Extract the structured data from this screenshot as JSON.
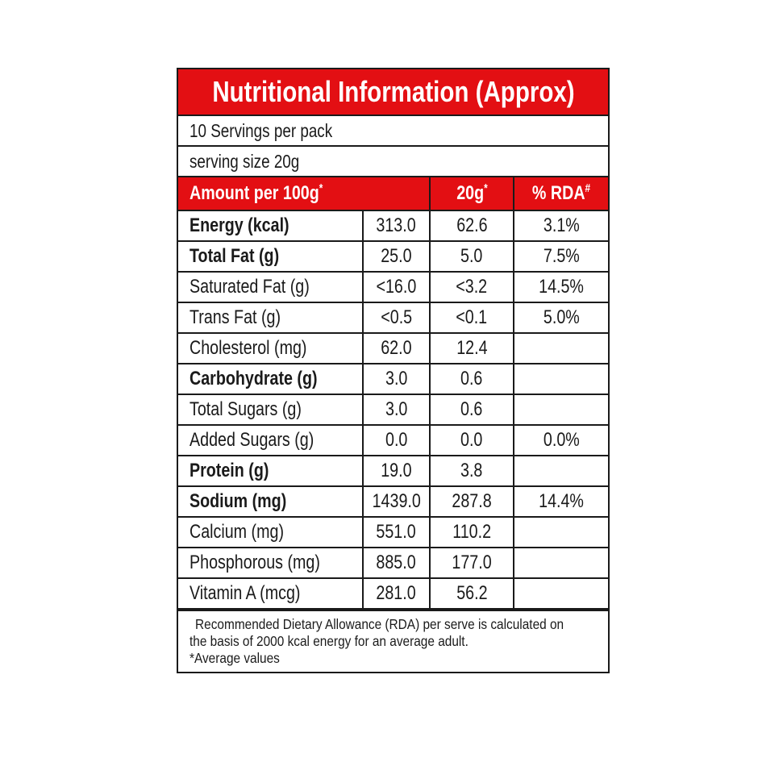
{
  "title": "Nutritional Information (Approx)",
  "servings_per_pack": "10 Servings per pack",
  "serving_size": "serving size 20g",
  "header": {
    "col1": "Amount per 100g",
    "col1_mark": "*",
    "col2": "20g",
    "col2_mark": "*",
    "col3": "% RDA",
    "col3_mark": "#"
  },
  "rows": [
    {
      "name": "Energy (kcal)",
      "bold": true,
      "per100g": "313.0",
      "per20g": "62.6",
      "rda": "3.1%"
    },
    {
      "name": "Total Fat (g)",
      "bold": true,
      "per100g": "25.0",
      "per20g": "5.0",
      "rda": "7.5%"
    },
    {
      "name": "Saturated Fat (g)",
      "bold": false,
      "per100g": "<16.0",
      "per20g": "<3.2",
      "rda": "14.5%"
    },
    {
      "name": "Trans Fat (g)",
      "bold": false,
      "per100g": "<0.5",
      "per20g": "<0.1",
      "rda": "5.0%"
    },
    {
      "name": "Cholesterol (mg)",
      "bold": false,
      "per100g": "62.0",
      "per20g": "12.4",
      "rda": ""
    },
    {
      "name": "Carbohydrate (g)",
      "bold": true,
      "per100g": "3.0",
      "per20g": "0.6",
      "rda": ""
    },
    {
      "name": "Total Sugars (g)",
      "bold": false,
      "per100g": "3.0",
      "per20g": "0.6",
      "rda": ""
    },
    {
      "name": "Added Sugars (g)",
      "bold": false,
      "per100g": "0.0",
      "per20g": "0.0",
      "rda": "0.0%"
    },
    {
      "name": "Protein (g)",
      "bold": true,
      "per100g": "19.0",
      "per20g": "3.8",
      "rda": ""
    },
    {
      "name": "Sodium (mg)",
      "bold": true,
      "per100g": "1439.0",
      "per20g": "287.8",
      "rda": "14.4%"
    },
    {
      "name": "Calcium (mg)",
      "bold": false,
      "per100g": "551.0",
      "per20g": "110.2",
      "rda": ""
    },
    {
      "name": "Phosphorous (mg)",
      "bold": false,
      "per100g": "885.0",
      "per20g": "177.0",
      "rda": ""
    },
    {
      "name": "Vitamin A (mcg)",
      "bold": false,
      "per100g": "281.0",
      "per20g": "56.2",
      "rda": ""
    }
  ],
  "footnote": {
    "line1": "Recommended Dietary Allowance (RDA) per serve is calculated on",
    "line2": "the basis of 2000 kcal energy for an average adult.",
    "line3": "*Average values"
  },
  "colors": {
    "header_red": "#e30f13",
    "text": "#1a1a1a"
  }
}
